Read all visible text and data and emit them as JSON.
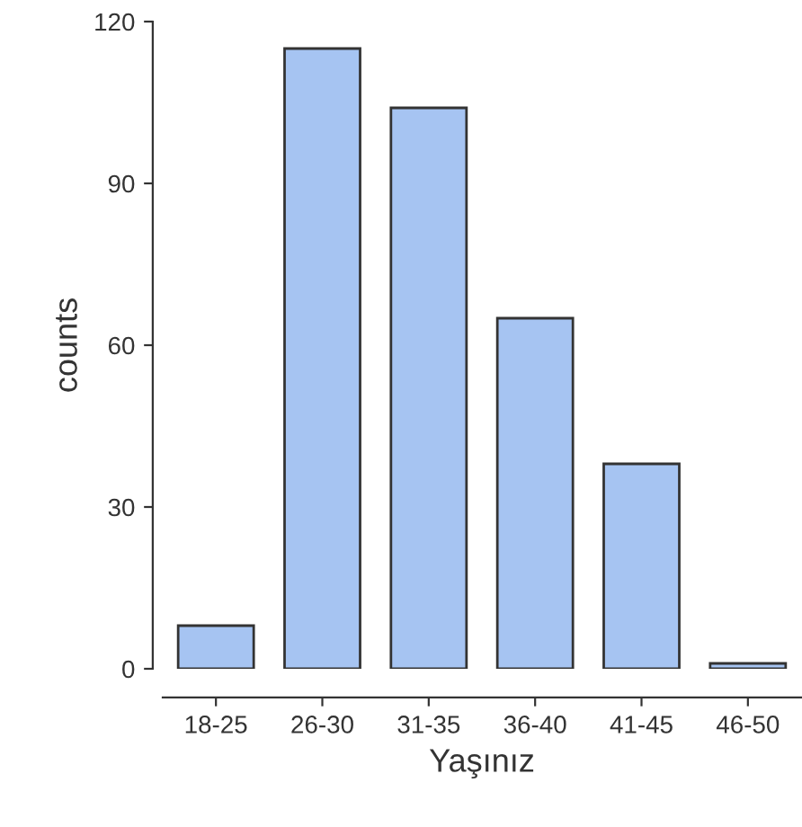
{
  "chart_data": {
    "type": "bar",
    "xlabel": "Yaşınız",
    "ylabel": "counts",
    "categories": [
      "18-25",
      "26-30",
      "31-35",
      "36-40",
      "41-45",
      "46-50"
    ],
    "values": [
      8,
      115,
      104,
      65,
      38,
      1
    ],
    "color": "#a6c4f2",
    "ylim": [
      0,
      120
    ],
    "yticks": [
      0,
      30,
      60,
      90,
      120
    ],
    "grid": false
  }
}
